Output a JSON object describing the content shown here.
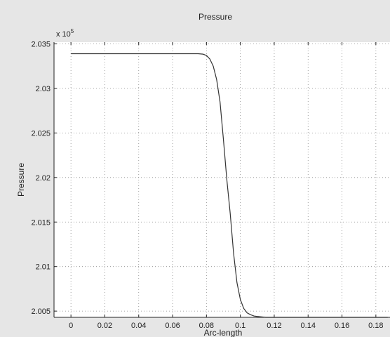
{
  "chart_data": {
    "type": "line",
    "title": "Pressure",
    "xlabel": "Arc-length",
    "ylabel": "Pressure",
    "xlim": [
      -0.01,
      0.19
    ],
    "ylim": [
      2.0043,
      2.0352
    ],
    "y_multiplier": {
      "base": "x 10",
      "exponent": "5"
    },
    "xticks": [
      0,
      0.02,
      0.04,
      0.06,
      0.08,
      0.1,
      0.12,
      0.14,
      0.16,
      0.18
    ],
    "xtick_labels": [
      "0",
      "0.02",
      "0.04",
      "0.06",
      "0.08",
      "0.1",
      "0.12",
      "0.14",
      "0.16",
      "0.18"
    ],
    "yticks": [
      2.005,
      2.01,
      2.015,
      2.02,
      2.025,
      2.03,
      2.035
    ],
    "ytick_labels": [
      "2.005",
      "2.01",
      "2.015",
      "2.02",
      "2.025",
      "2.03",
      "2.035"
    ],
    "grid": true,
    "grid_style": "dotted",
    "line_color": "#333333",
    "series": [
      {
        "x": [
          0,
          0.02,
          0.04,
          0.06,
          0.07,
          0.075,
          0.078,
          0.08,
          0.082,
          0.084,
          0.086,
          0.088,
          0.09,
          0.092,
          0.094,
          0.096,
          0.098,
          0.1,
          0.102,
          0.104,
          0.106,
          0.108,
          0.11,
          0.115,
          0.12,
          0.14,
          0.16,
          0.18,
          0.187
        ],
        "y": [
          2.0339,
          2.0339,
          2.0339,
          2.0339,
          2.0339,
          2.0339,
          2.03385,
          2.0337,
          2.0333,
          2.0325,
          2.031,
          2.0285,
          2.0243,
          2.0198,
          2.016,
          2.0115,
          2.0082,
          2.0063,
          2.0053,
          2.0048,
          2.0046,
          2.00445,
          2.0044,
          2.0043,
          2.0043,
          2.0043,
          2.0043,
          2.0043,
          2.0043
        ]
      }
    ]
  }
}
